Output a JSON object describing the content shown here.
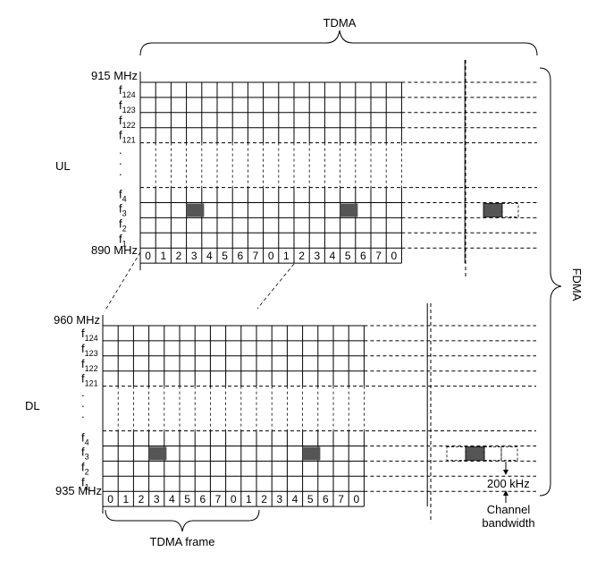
{
  "top_label": "TDMA",
  "side_label": "FDMA",
  "bottom_label": "TDMA frame",
  "bandwidth": {
    "value": "200 kHz",
    "caption_line1": "Channel",
    "caption_line2": "bandwidth"
  },
  "uplink": {
    "name": "UL",
    "top_freq": "915 MHz",
    "bottom_freq": "890 MHz",
    "channels_top": [
      {
        "f": "f",
        "sub": "124"
      },
      {
        "f": "f",
        "sub": "123"
      },
      {
        "f": "f",
        "sub": "122"
      },
      {
        "f": "f",
        "sub": "121"
      }
    ],
    "channels_bottom": [
      {
        "f": "f",
        "sub": "4"
      },
      {
        "f": "f",
        "sub": "3"
      },
      {
        "f": "f",
        "sub": "2"
      },
      {
        "f": "f",
        "sub": "1"
      }
    ],
    "slot_numbers": [
      "0",
      "1",
      "2",
      "3",
      "4",
      "5",
      "6",
      "7",
      "0",
      "1",
      "2",
      "3",
      "4",
      "5",
      "6",
      "7",
      "0"
    ],
    "active_slot": 3,
    "active_channel": "f3"
  },
  "downlink": {
    "name": "DL",
    "top_freq": "960 MHz",
    "bottom_freq": "935 MHz",
    "channels_top": [
      {
        "f": "f",
        "sub": "124"
      },
      {
        "f": "f",
        "sub": "123"
      },
      {
        "f": "f",
        "sub": "122"
      },
      {
        "f": "f",
        "sub": "121"
      }
    ],
    "channels_bottom": [
      {
        "f": "f",
        "sub": "4"
      },
      {
        "f": "f",
        "sub": "3"
      },
      {
        "f": "f",
        "sub": "2"
      },
      {
        "f": "f",
        "sub": "1"
      }
    ],
    "slot_numbers": [
      "0",
      "1",
      "2",
      "3",
      "4",
      "5",
      "6",
      "7",
      "0",
      "1",
      "2",
      "3",
      "4",
      "5",
      "6",
      "7",
      "0"
    ],
    "active_slot": 3,
    "active_channel": "f3"
  },
  "colors": {
    "line": "#000000",
    "slot_fill": "#555555"
  }
}
